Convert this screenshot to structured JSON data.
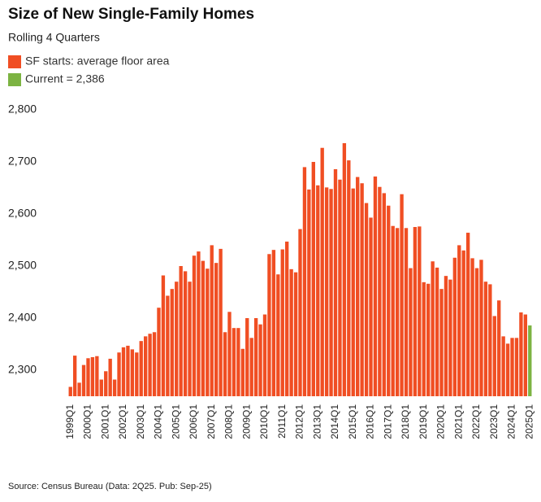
{
  "chart_data": {
    "type": "bar",
    "title": "Size of New Single-Family Homes",
    "subtitle": "Rolling 4 Quarters",
    "source": "Source: Census Bureau (Data: 2Q25. Pub: Sep-25)",
    "categories": [
      "1999Q1",
      null,
      null,
      null,
      "2000Q1",
      null,
      null,
      null,
      "2001Q1",
      null,
      null,
      null,
      "2002Q1",
      null,
      null,
      null,
      "2003Q1",
      null,
      null,
      null,
      "2004Q1",
      null,
      null,
      null,
      "2005Q1",
      null,
      null,
      null,
      "2006Q1",
      null,
      null,
      null,
      "2007Q1",
      null,
      null,
      null,
      "2008Q1",
      null,
      null,
      null,
      "2009Q1",
      null,
      null,
      null,
      "2010Q1",
      null,
      null,
      null,
      "2011Q1",
      null,
      null,
      null,
      "2012Q1",
      null,
      null,
      null,
      "2013Q1",
      null,
      null,
      null,
      "2014Q1",
      null,
      null,
      null,
      "2015Q1",
      null,
      null,
      null,
      "2016Q1",
      null,
      null,
      null,
      "2017Q1",
      null,
      null,
      null,
      "2018Q1",
      null,
      null,
      null,
      "2019Q1",
      null,
      null,
      null,
      "2020Q1",
      null,
      null,
      null,
      "2021Q1",
      null,
      null,
      null,
      "2022Q1",
      null,
      null,
      null,
      "2023Q1",
      null,
      null,
      null,
      "2024Q1",
      null,
      null,
      null,
      "2025Q1"
    ],
    "series": [
      {
        "name": "SF starts: average floor area",
        "color": "#f04e23",
        "values": [
          2268,
          2328,
          2276,
          2310,
          2323,
          2325,
          2327,
          2282,
          2298,
          2322,
          2282,
          2334,
          2344,
          2347,
          2340,
          2334,
          2356,
          2365,
          2370,
          2373,
          2420,
          2482,
          2443,
          2456,
          2470,
          2500,
          2490,
          2470,
          2520,
          2528,
          2510,
          2495,
          2540,
          2506,
          2533,
          2373,
          2412,
          2381,
          2381,
          2341,
          2400,
          2362,
          2400,
          2388,
          2407,
          2523,
          2531,
          2484,
          2532,
          2547,
          2494,
          2488,
          2571,
          2690,
          2647,
          2700,
          2655,
          2727,
          2651,
          2648,
          2686,
          2666,
          2736,
          2703,
          2649,
          2671,
          2659,
          2621,
          2593,
          2672,
          2652,
          2640,
          2616,
          2577,
          2573,
          2638,
          2573,
          2496,
          2575,
          2576,
          2469,
          2466,
          2509,
          2497,
          2456,
          2481,
          2474,
          2516,
          2540,
          2530,
          2564,
          2515,
          2496,
          2512,
          2470,
          2465,
          2404,
          2434,
          2365,
          2351,
          2362,
          2362,
          2411,
          2407,
          null
        ]
      },
      {
        "name": "Current = 2,386",
        "color": "#7cb342",
        "values": [
          null,
          null,
          null,
          null,
          null,
          null,
          null,
          null,
          null,
          null,
          null,
          null,
          null,
          null,
          null,
          null,
          null,
          null,
          null,
          null,
          null,
          null,
          null,
          null,
          null,
          null,
          null,
          null,
          null,
          null,
          null,
          null,
          null,
          null,
          null,
          null,
          null,
          null,
          null,
          null,
          null,
          null,
          null,
          null,
          null,
          null,
          null,
          null,
          null,
          null,
          null,
          null,
          null,
          null,
          null,
          null,
          null,
          null,
          null,
          null,
          null,
          null,
          null,
          null,
          null,
          null,
          null,
          null,
          null,
          null,
          null,
          null,
          null,
          null,
          null,
          null,
          null,
          null,
          null,
          null,
          null,
          null,
          null,
          null,
          null,
          null,
          null,
          null,
          null,
          null,
          null,
          null,
          null,
          null,
          null,
          null,
          null,
          null,
          null,
          null,
          null,
          null,
          null,
          null,
          2386
        ]
      }
    ],
    "ylim": [
      2250,
      2800
    ],
    "yticks": [
      {
        "value": 2300,
        "label": "2,300"
      },
      {
        "value": 2400,
        "label": "2,400"
      },
      {
        "value": 2500,
        "label": "2,500"
      },
      {
        "value": 2600,
        "label": "2,600"
      },
      {
        "value": 2700,
        "label": "2,700"
      },
      {
        "value": 2800,
        "label": "2,800"
      }
    ],
    "grid": false
  }
}
